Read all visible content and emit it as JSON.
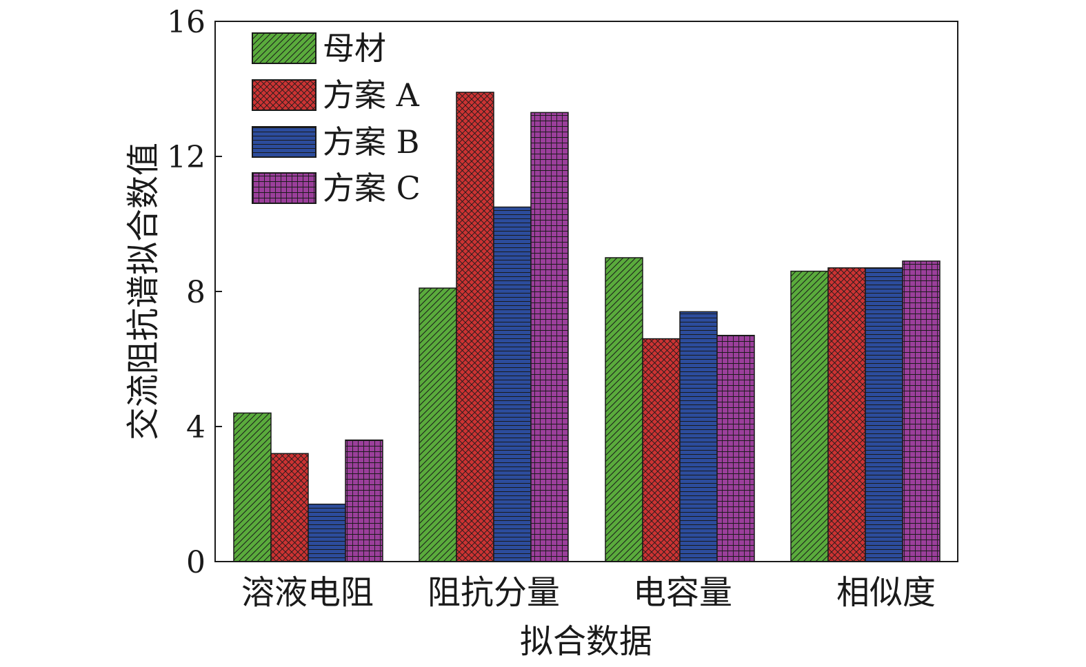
{
  "chart_data": {
    "type": "bar",
    "title": "",
    "xlabel": "拟合数据",
    "ylabel": "交流阻抗谱拟合数值",
    "ylim": [
      0,
      16
    ],
    "yticks": [
      "0",
      "4",
      "8",
      "12",
      "16"
    ],
    "grid": false,
    "legend_position": "top-left",
    "categories": [
      "溶液电阻",
      "阻抗分量",
      "电容量",
      "相似度"
    ],
    "series": [
      {
        "name": "母材",
        "color": "#5aab3c",
        "pattern": "diagonal-hatch",
        "values": [
          4.4,
          8.1,
          9.0,
          8.6
        ]
      },
      {
        "name": "方案 A",
        "color": "#cc3333",
        "pattern": "crosshatch",
        "values": [
          3.2,
          13.9,
          6.6,
          8.7
        ]
      },
      {
        "name": "方案 B",
        "color": "#2c4c9c",
        "pattern": "horizontal-lines",
        "values": [
          1.7,
          10.5,
          7.4,
          8.7
        ]
      },
      {
        "name": "方案 C",
        "color": "#9b3f9b",
        "pattern": "grid",
        "values": [
          3.6,
          13.3,
          6.7,
          8.9
        ]
      }
    ]
  }
}
